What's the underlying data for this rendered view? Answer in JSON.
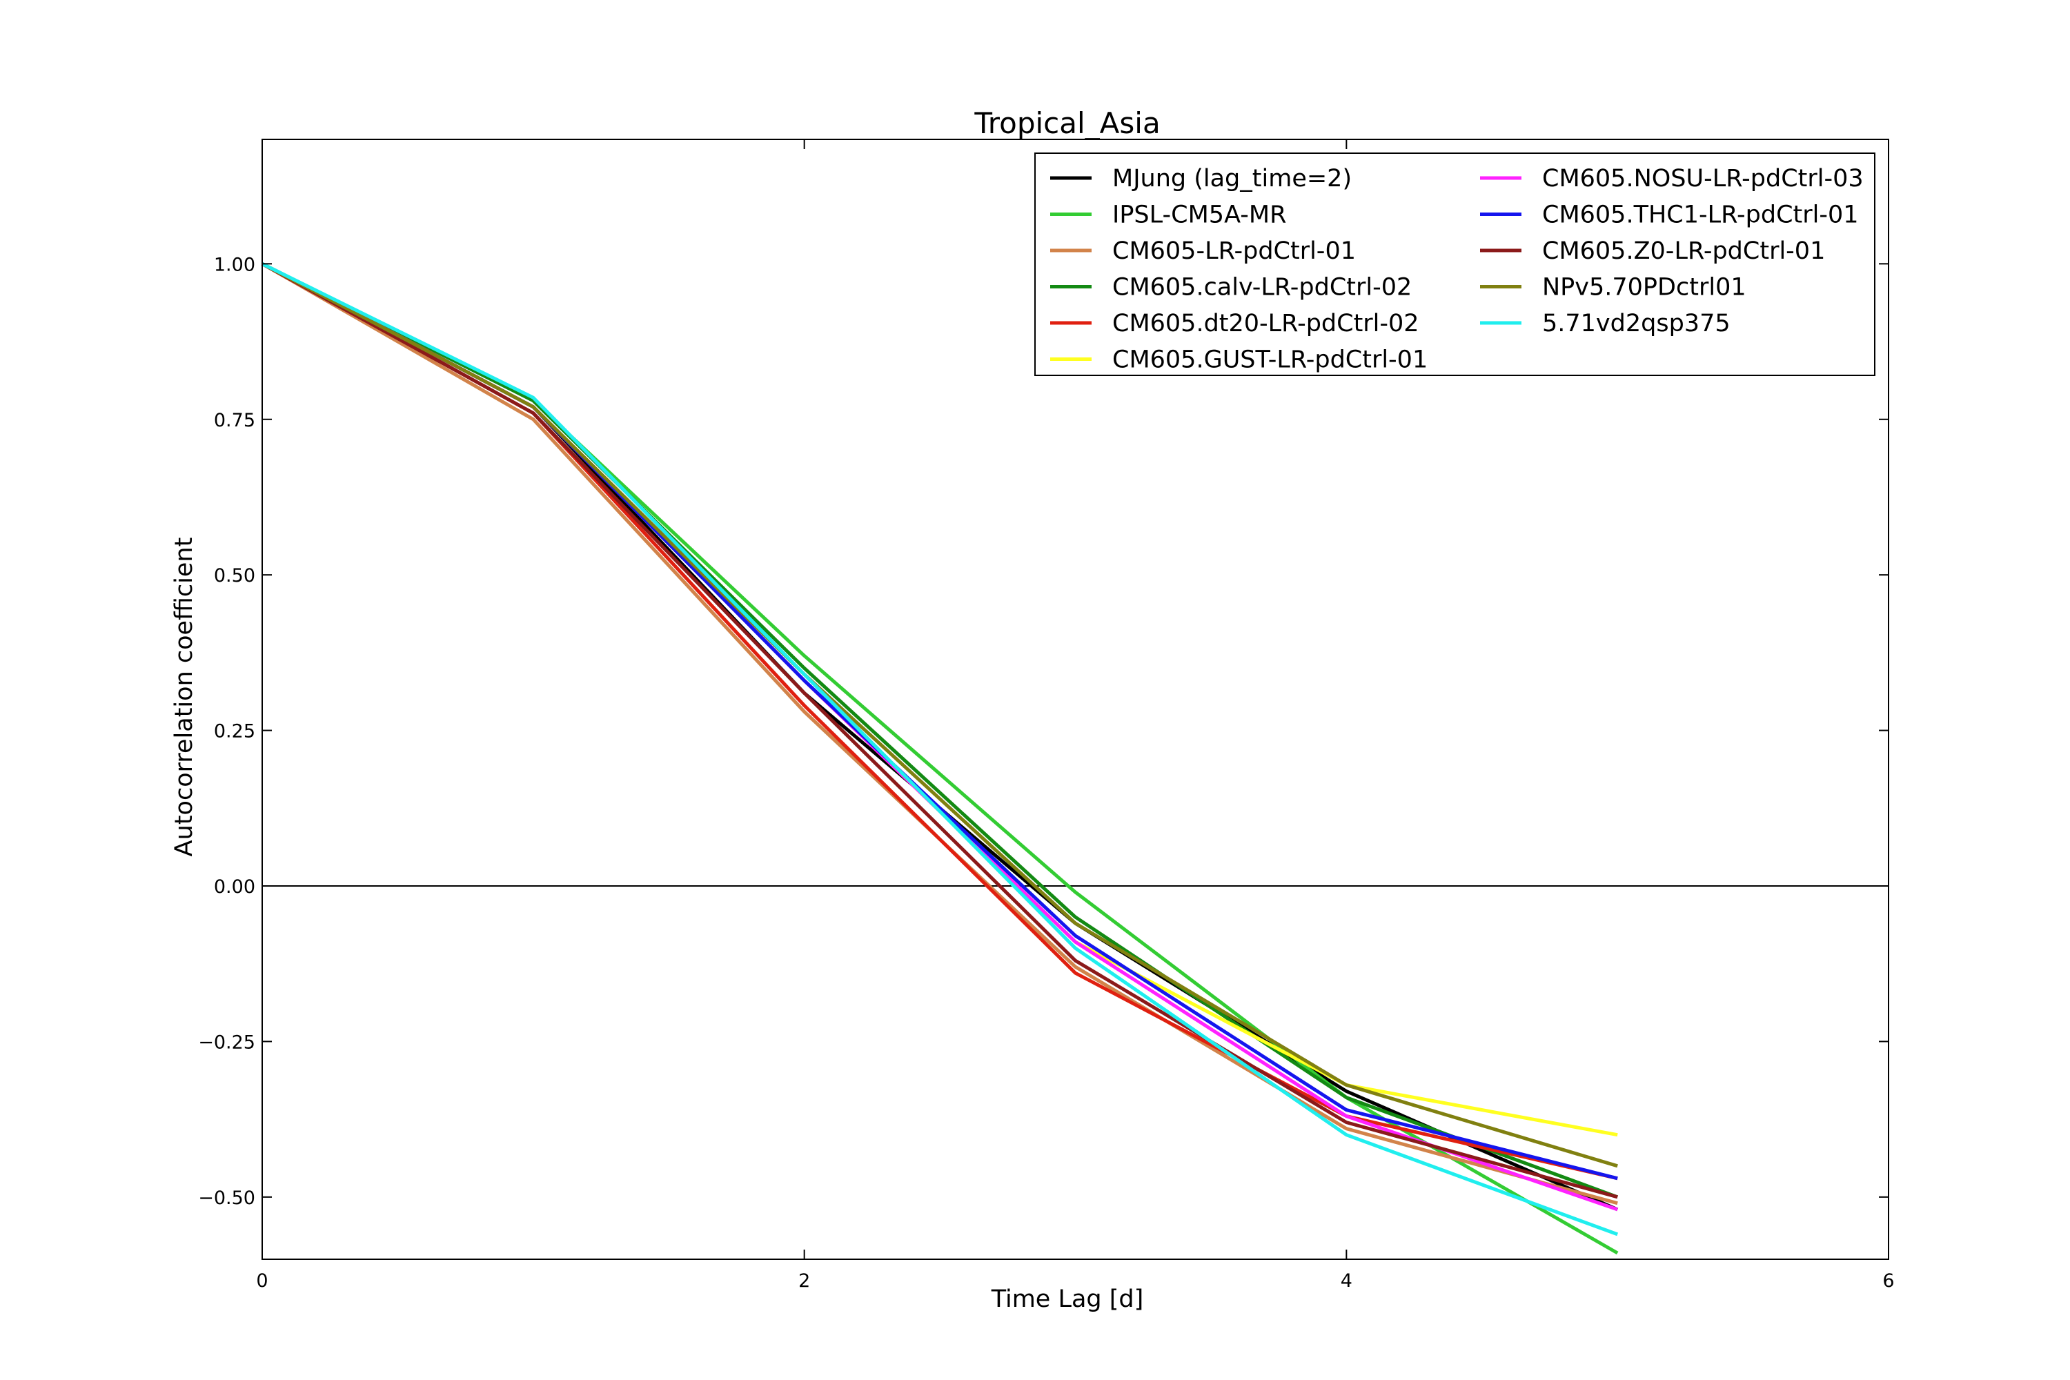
{
  "chart_data": {
    "type": "line",
    "title": "Tropical_Asia",
    "xlabel": "Time Lag [d]",
    "ylabel": "Autocorrelation coefficient",
    "xlim": [
      0,
      6
    ],
    "ylim": [
      -0.6,
      1.2
    ],
    "xticks": [
      0,
      2,
      4,
      6
    ],
    "yticks": [
      1.0,
      0.75,
      0.5,
      0.25,
      0.0,
      -0.25,
      -0.5
    ],
    "ytick_labels": [
      "1.00",
      "0.75",
      "0.50",
      "0.25",
      "0.00",
      "−0.25",
      "−0.50"
    ],
    "xtick_labels": [
      "0",
      "2",
      "4",
      "6"
    ],
    "zero_line": true,
    "grid": false,
    "legend_position": "top-right",
    "legend_columns": 2,
    "x": [
      0,
      1,
      2,
      3,
      4,
      5
    ],
    "series": [
      {
        "name": "MJung (lag_time=2)",
        "color": "#000000",
        "values": [
          1.0,
          0.77,
          0.31,
          -0.06,
          -0.33,
          -0.52
        ]
      },
      {
        "name": "IPSL-CM5A-MR",
        "color": "#33cc33",
        "values": [
          1.0,
          0.78,
          0.37,
          -0.01,
          -0.34,
          -0.59
        ]
      },
      {
        "name": "CM605-LR-pdCtrl-01",
        "color": "#d2834a",
        "values": [
          1.0,
          0.75,
          0.28,
          -0.13,
          -0.39,
          -0.51
        ]
      },
      {
        "name": "CM605.calv-LR-pdCtrl-02",
        "color": "#138a13",
        "values": [
          1.0,
          0.78,
          0.35,
          -0.05,
          -0.34,
          -0.5
        ]
      },
      {
        "name": "CM605.dt20-LR-pdCtrl-02",
        "color": "#e02010",
        "values": [
          1.0,
          0.76,
          0.29,
          -0.14,
          -0.37,
          -0.47
        ]
      },
      {
        "name": "CM605.GUST-LR-pdCtrl-01",
        "color": "#ffff20",
        "values": [
          1.0,
          0.77,
          0.33,
          -0.09,
          -0.32,
          -0.4
        ]
      },
      {
        "name": "CM605.NOSU-LR-pdCtrl-03",
        "color": "#ff22ff",
        "values": [
          1.0,
          0.77,
          0.33,
          -0.09,
          -0.37,
          -0.52
        ]
      },
      {
        "name": "CM605.THC1-LR-pdCtrl-01",
        "color": "#1515ee",
        "values": [
          1.0,
          0.77,
          0.33,
          -0.08,
          -0.36,
          -0.47
        ]
      },
      {
        "name": "CM605.Z0-LR-pdCtrl-01",
        "color": "#8b1a1a",
        "values": [
          1.0,
          0.76,
          0.31,
          -0.12,
          -0.38,
          -0.5
        ]
      },
      {
        "name": "NPv5.70PDctrl01",
        "color": "#808010",
        "values": [
          1.0,
          0.77,
          0.34,
          -0.06,
          -0.32,
          -0.45
        ]
      },
      {
        "name": "5.71vd2qsp375",
        "color": "#20eeee",
        "values": [
          1.0,
          0.785,
          0.34,
          -0.1,
          -0.4,
          -0.56
        ]
      }
    ]
  }
}
